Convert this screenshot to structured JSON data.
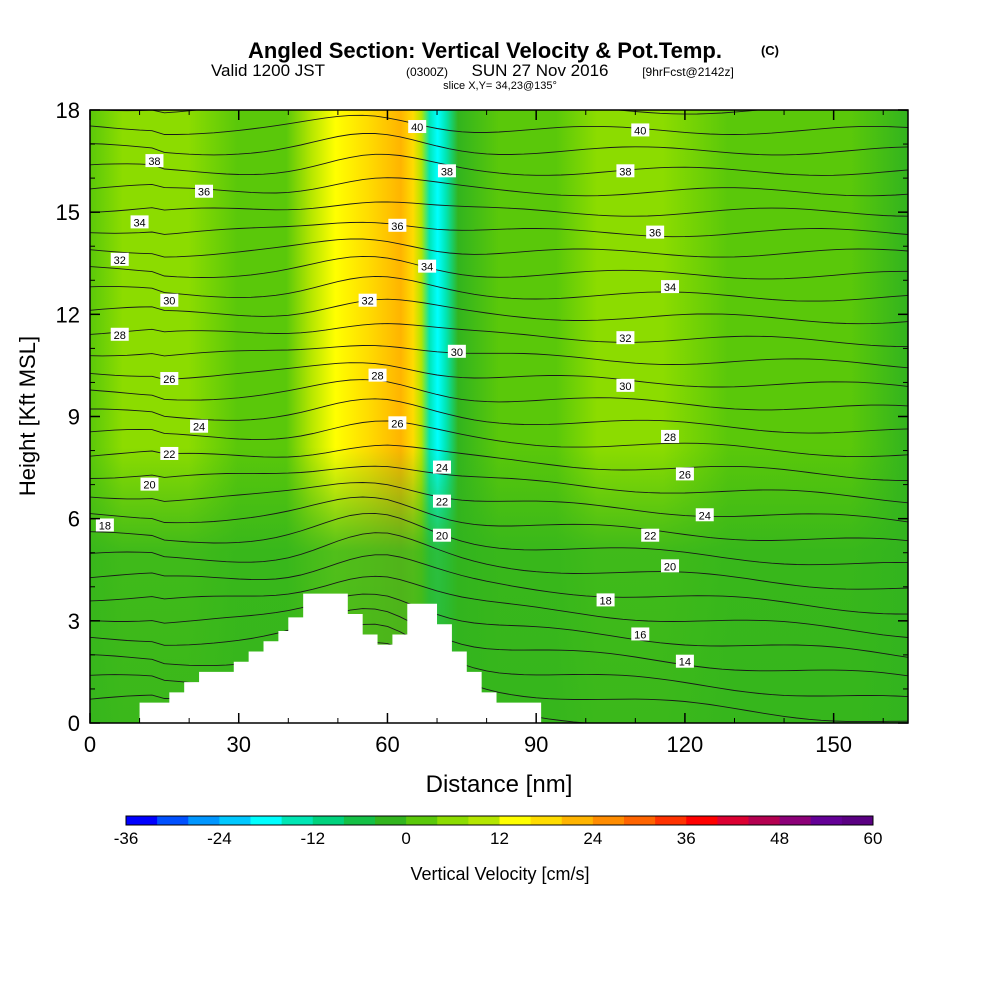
{
  "header": {
    "title": "Angled Section: Vertical Velocity & Pot.Temp.",
    "title_tag": "(C)",
    "valid_prefix": "Valid 1200 JST",
    "valid_utc": "(0300Z)",
    "valid_date": "SUN 27 Nov 2016",
    "forecast": "[9hrFcst@2142z]",
    "slice": "slice X,Y= 34,23@135°"
  },
  "chart_data": {
    "type": "heatmap",
    "xlabel": "Distance [nm]",
    "ylabel": "Height [Kft MSL]",
    "xlim": [
      0,
      165
    ],
    "ylim": [
      0,
      18
    ],
    "x_ticks": [
      0,
      30,
      60,
      90,
      120,
      150
    ],
    "y_ticks": [
      0,
      3,
      6,
      9,
      12,
      15,
      18
    ],
    "colorbar": {
      "label": "Vertical Velocity [cm/s]",
      "min": -36,
      "max": 60,
      "step": 4,
      "tick_labels": [
        -36,
        -24,
        -12,
        0,
        12,
        24,
        36,
        48,
        60
      ],
      "colors": [
        "#0000ff",
        "#0050ff",
        "#0096ff",
        "#00c8ff",
        "#00ffff",
        "#00e6b4",
        "#00d27d",
        "#14c046",
        "#32b41e",
        "#5ac80a",
        "#8cdc00",
        "#b4e600",
        "#ffff00",
        "#ffdc00",
        "#ffb400",
        "#ff8c00",
        "#ff6400",
        "#ff3200",
        "#ff0000",
        "#dc0032",
        "#b40050",
        "#8c0078",
        "#640096",
        "#5a0082"
      ]
    },
    "terrain": [
      [
        10,
        0.3
      ],
      [
        10,
        0.6
      ],
      [
        16,
        0.6
      ],
      [
        16,
        0.9
      ],
      [
        19,
        0.9
      ],
      [
        19,
        1.2
      ],
      [
        22,
        1.2
      ],
      [
        22,
        1.5
      ],
      [
        29,
        1.5
      ],
      [
        29,
        1.8
      ],
      [
        32,
        1.8
      ],
      [
        32,
        2.1
      ],
      [
        35,
        2.1
      ],
      [
        35,
        2.4
      ],
      [
        38,
        2.4
      ],
      [
        38,
        2.7
      ],
      [
        40,
        2.7
      ],
      [
        40,
        3.1
      ],
      [
        43,
        3.1
      ],
      [
        43,
        3.8
      ],
      [
        52,
        3.8
      ],
      [
        52,
        3.2
      ],
      [
        55,
        3.2
      ],
      [
        55,
        2.6
      ],
      [
        58,
        2.6
      ],
      [
        58,
        2.3
      ],
      [
        61,
        2.3
      ],
      [
        61,
        2.6
      ],
      [
        64,
        2.6
      ],
      [
        64,
        3.5
      ],
      [
        70,
        3.5
      ],
      [
        70,
        2.9
      ],
      [
        73,
        2.9
      ],
      [
        73,
        2.1
      ],
      [
        76,
        2.1
      ],
      [
        76,
        1.5
      ],
      [
        79,
        1.5
      ],
      [
        79,
        0.9
      ],
      [
        82,
        0.9
      ],
      [
        82,
        0.6
      ],
      [
        91,
        0.6
      ],
      [
        91,
        0.3
      ]
    ],
    "theta_labels": [
      {
        "value": "40",
        "x": 66,
        "y": 17.5
      },
      {
        "value": "40",
        "x": 111,
        "y": 17.4
      },
      {
        "value": "38",
        "x": 13,
        "y": 16.5
      },
      {
        "value": "38",
        "x": 72,
        "y": 16.2
      },
      {
        "value": "38",
        "x": 108,
        "y": 16.2
      },
      {
        "value": "36",
        "x": 23,
        "y": 15.6
      },
      {
        "value": "36",
        "x": 62,
        "y": 14.6
      },
      {
        "value": "36",
        "x": 114,
        "y": 14.4
      },
      {
        "value": "34",
        "x": 10,
        "y": 14.7
      },
      {
        "value": "34",
        "x": 68,
        "y": 13.4
      },
      {
        "value": "34",
        "x": 117,
        "y": 12.8
      },
      {
        "value": "32",
        "x": 6,
        "y": 13.6
      },
      {
        "value": "32",
        "x": 56,
        "y": 12.4
      },
      {
        "value": "32",
        "x": 108,
        "y": 11.3
      },
      {
        "value": "30",
        "x": 16,
        "y": 12.4
      },
      {
        "value": "30",
        "x": 74,
        "y": 10.9
      },
      {
        "value": "30",
        "x": 108,
        "y": 9.9
      },
      {
        "value": "28",
        "x": 6,
        "y": 11.4
      },
      {
        "value": "28",
        "x": 58,
        "y": 10.2
      },
      {
        "value": "28",
        "x": 117,
        "y": 8.4
      },
      {
        "value": "26",
        "x": 16,
        "y": 10.1
      },
      {
        "value": "26",
        "x": 62,
        "y": 8.8
      },
      {
        "value": "26",
        "x": 120,
        "y": 7.3
      },
      {
        "value": "24",
        "x": 22,
        "y": 8.7
      },
      {
        "value": "24",
        "x": 71,
        "y": 7.5
      },
      {
        "value": "24",
        "x": 124,
        "y": 6.1
      },
      {
        "value": "22",
        "x": 16,
        "y": 7.9
      },
      {
        "value": "22",
        "x": 71,
        "y": 6.5
      },
      {
        "value": "22",
        "x": 113,
        "y": 5.5
      },
      {
        "value": "20",
        "x": 12,
        "y": 7.0
      },
      {
        "value": "20",
        "x": 71,
        "y": 5.5
      },
      {
        "value": "20",
        "x": 117,
        "y": 4.6
      },
      {
        "value": "18",
        "x": 3,
        "y": 5.8
      },
      {
        "value": "18",
        "x": 104,
        "y": 3.6
      },
      {
        "value": "16",
        "x": 111,
        "y": 2.6
      },
      {
        "value": "14",
        "x": 120,
        "y": 1.8
      }
    ]
  }
}
